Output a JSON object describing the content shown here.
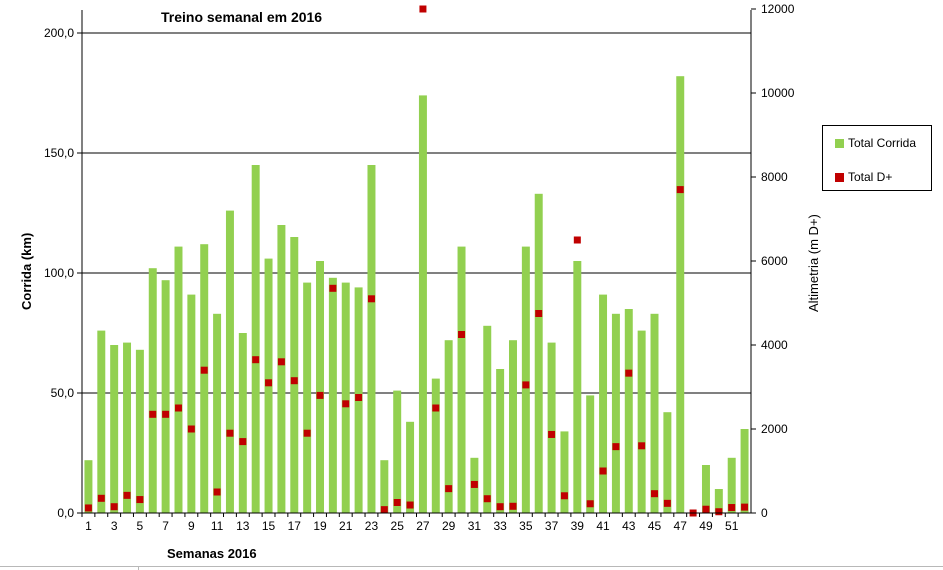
{
  "chart_data": {
    "type": "bar",
    "title": "Treino semanal em 2016",
    "xlabel": "Semanas 2016",
    "ylabel": "Corrida (km)",
    "ylabel_right": "Altimetria (m D+)",
    "ylim": [
      0,
      210
    ],
    "ylim_right": [
      0,
      12000
    ],
    "y_ticks": [
      "0,0",
      "50,0",
      "100,0",
      "150,0",
      "200,0"
    ],
    "y_right_ticks": [
      "0",
      "2000",
      "4000",
      "6000",
      "8000",
      "10000",
      "12000"
    ],
    "x_tick_labels": [
      "1",
      "3",
      "5",
      "7",
      "9",
      "11",
      "13",
      "15",
      "17",
      "19",
      "21",
      "23",
      "25",
      "27",
      "29",
      "31",
      "33",
      "35",
      "37",
      "39",
      "41",
      "43",
      "45",
      "47",
      "49",
      "51"
    ],
    "grid": true,
    "legend_position": "right",
    "colors": {
      "corrida": "#92D050",
      "dplus": "#C00000",
      "grid": "#000000"
    },
    "categories": [
      1,
      2,
      3,
      4,
      5,
      6,
      7,
      8,
      9,
      10,
      11,
      12,
      13,
      14,
      15,
      16,
      17,
      18,
      19,
      20,
      21,
      22,
      23,
      24,
      25,
      26,
      27,
      28,
      29,
      30,
      31,
      32,
      33,
      34,
      35,
      36,
      37,
      38,
      39,
      40,
      41,
      42,
      43,
      44,
      45,
      46,
      47,
      48,
      49,
      50,
      51,
      52
    ],
    "series": [
      {
        "name": "Total Corrida",
        "kind": "bar",
        "axis": "left",
        "values": [
          22,
          76,
          70,
          71,
          68,
          102,
          97,
          111,
          91,
          112,
          83,
          126,
          75,
          145,
          106,
          120,
          115,
          96,
          105,
          98,
          96,
          94,
          145,
          22,
          51,
          38,
          174,
          56,
          72,
          111,
          23,
          78,
          60,
          72,
          111,
          133,
          71,
          34,
          105,
          49,
          91,
          83,
          85,
          76,
          83,
          42,
          182,
          0,
          20,
          10,
          23,
          35
        ]
      },
      {
        "name": "Total D+",
        "kind": "marker",
        "axis": "right",
        "values": [
          120,
          350,
          150,
          420,
          320,
          2350,
          2350,
          2500,
          2000,
          3400,
          500,
          1900,
          1700,
          3650,
          3100,
          3600,
          3150,
          1900,
          2800,
          5350,
          2600,
          2750,
          5100,
          80,
          250,
          190,
          12000,
          2500,
          580,
          4250,
          680,
          340,
          150,
          160,
          3050,
          4750,
          1870,
          410,
          6500,
          220,
          1000,
          1580,
          3330,
          1600,
          460,
          230,
          7700,
          0,
          90,
          30,
          130,
          140
        ]
      }
    ]
  }
}
